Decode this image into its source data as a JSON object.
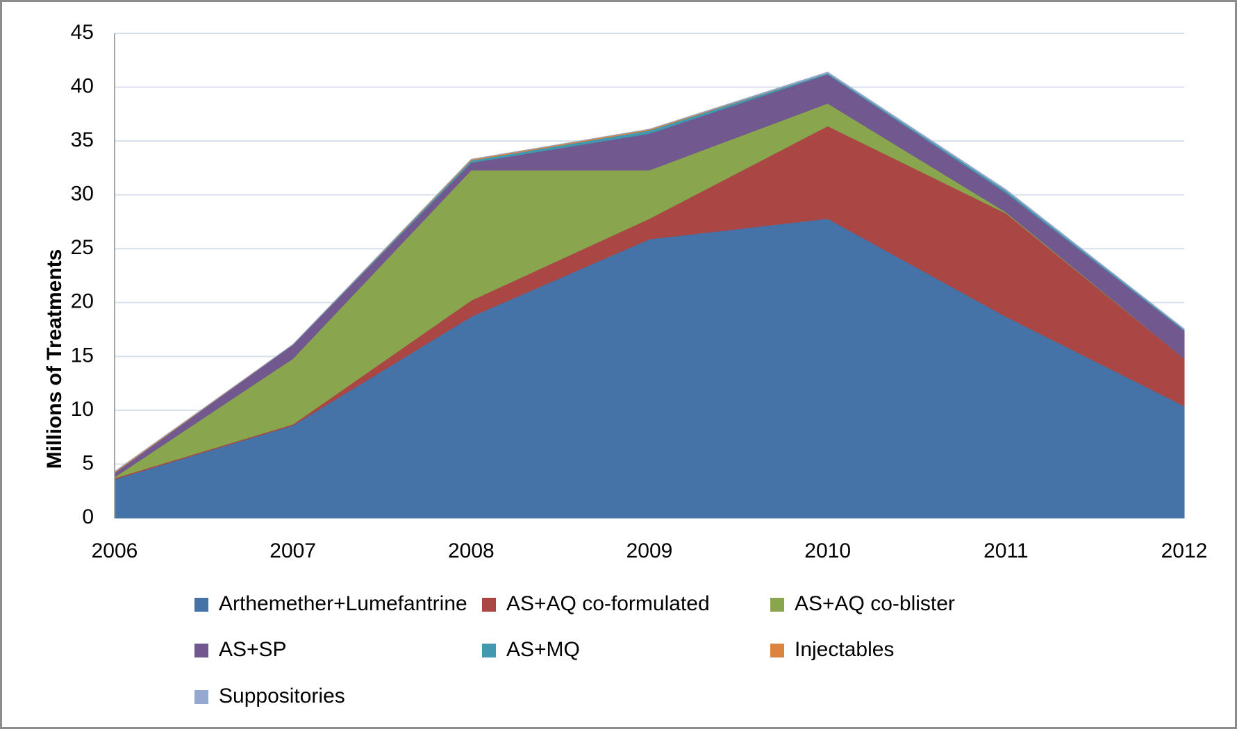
{
  "chart_data": {
    "type": "stacked_area",
    "y_label": "Millions of Treatments",
    "categories": [
      "2006",
      "2007",
      "2008",
      "2009",
      "2010",
      "2011",
      "2012"
    ],
    "ylim": [
      0,
      45
    ],
    "yticks": [
      0,
      5,
      10,
      15,
      20,
      25,
      30,
      35,
      40,
      45
    ],
    "grid": true,
    "legend": "bottom",
    "series": [
      {
        "name": "Arthemether+Lumefantrine",
        "color": "#4572a7",
        "values": [
          3.6,
          8.6,
          18.7,
          25.9,
          27.8,
          18.7,
          10.4
        ]
      },
      {
        "name": "AS+AQ co-formulated",
        "color": "#aa4643",
        "values": [
          0.1,
          0.1,
          1.5,
          1.9,
          8.6,
          9.6,
          4.4
        ]
      },
      {
        "name": "AS+AQ co-blister",
        "color": "#89a54e",
        "values": [
          0.1,
          6.1,
          12.1,
          4.5,
          2.1,
          0.1,
          0
        ]
      },
      {
        "name": "AS+SP",
        "color": "#71588f",
        "values": [
          0.4,
          1.3,
          0.7,
          3.4,
          2.7,
          1.8,
          2.6
        ]
      },
      {
        "name": "AS+MQ",
        "color": "#4198af",
        "values": [
          0,
          0,
          0.2,
          0.3,
          0.1,
          0.2,
          0.1
        ]
      },
      {
        "name": "Injectables",
        "color": "#db843d",
        "values": [
          0.1,
          0,
          0.1,
          0.1,
          0,
          0,
          0
        ]
      },
      {
        "name": "Suppositories",
        "color": "#93a9cf",
        "values": [
          0,
          0,
          0,
          0,
          0.1,
          0.1,
          0.05
        ]
      }
    ]
  }
}
